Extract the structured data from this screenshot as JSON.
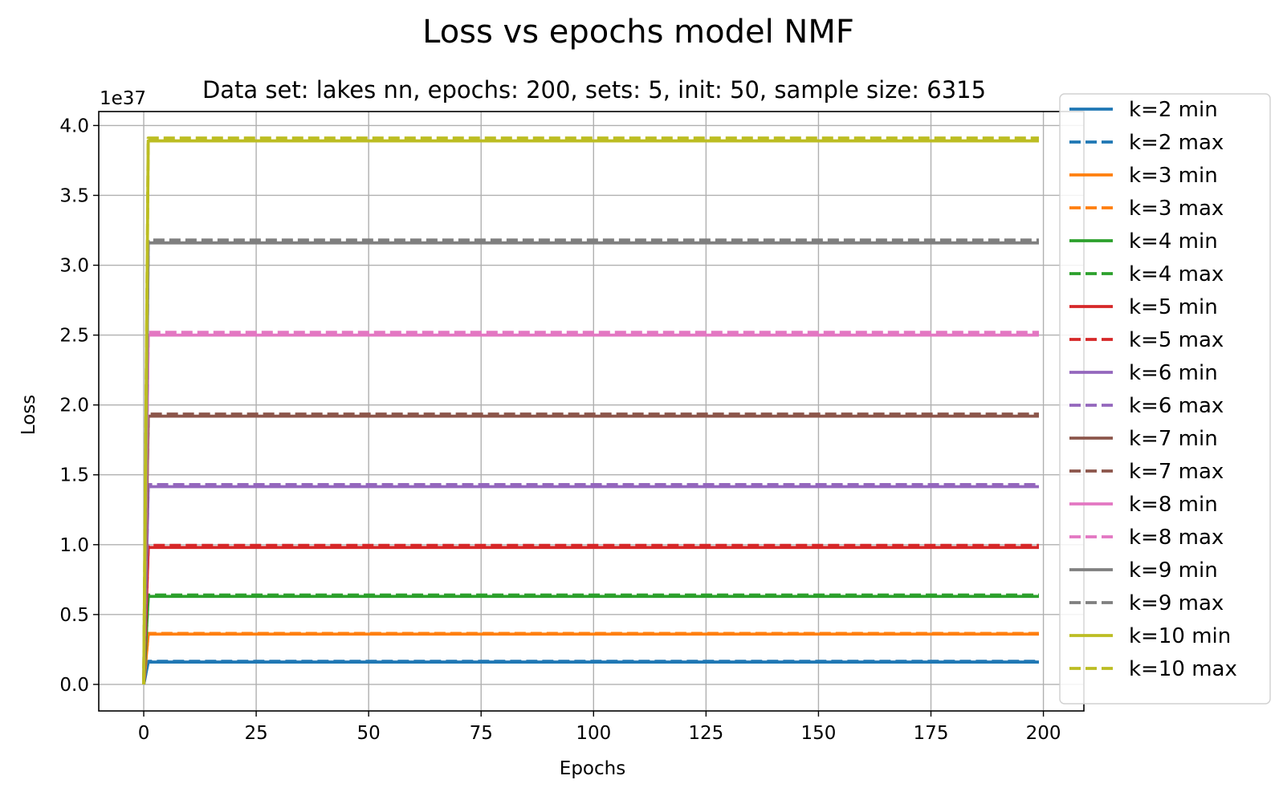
{
  "chart_data": {
    "type": "line",
    "title": "Loss vs epochs model NMF",
    "subtitle": "Data set:  lakes nn, epochs: 200, sets: 5, init: 50, sample size: 6315",
    "xlabel": "Epochs",
    "ylabel": "Loss",
    "y_offset_label": "1e37",
    "xlim": [
      -10,
      209
    ],
    "ylim": [
      -0.19,
      4.1
    ],
    "x_ticks": [
      0,
      25,
      50,
      75,
      100,
      125,
      150,
      175,
      200
    ],
    "x_tick_labels": [
      "0",
      "25",
      "50",
      "75",
      "100",
      "125",
      "150",
      "175",
      "200"
    ],
    "y_ticks": [
      0,
      0.5,
      1,
      1.5,
      2,
      2.5,
      3,
      3.5,
      4
    ],
    "y_tick_labels": [
      "0.0",
      "0.5",
      "1.0",
      "1.5",
      "2.0",
      "2.5",
      "3.0",
      "3.5",
      "4.0"
    ],
    "grid": true,
    "legend_position": "right, outside plot (top)",
    "x": [
      0,
      1,
      199
    ],
    "series": [
      {
        "name": "k=2 min",
        "color": "#1f77b4",
        "style": "solid",
        "values": [
          0,
          0.16,
          0.16
        ]
      },
      {
        "name": "k=2 max",
        "color": "#1f77b4",
        "style": "dashed",
        "values": [
          0,
          0.165,
          0.165
        ]
      },
      {
        "name": "k=3 min",
        "color": "#ff7f0e",
        "style": "solid",
        "values": [
          0,
          0.36,
          0.36
        ]
      },
      {
        "name": "k=3 max",
        "color": "#ff7f0e",
        "style": "dashed",
        "values": [
          0,
          0.365,
          0.365
        ]
      },
      {
        "name": "k=4 min",
        "color": "#2ca02c",
        "style": "solid",
        "values": [
          0,
          0.63,
          0.63
        ]
      },
      {
        "name": "k=4 max",
        "color": "#2ca02c",
        "style": "dashed",
        "values": [
          0,
          0.64,
          0.64
        ]
      },
      {
        "name": "k=5 min",
        "color": "#d62728",
        "style": "solid",
        "values": [
          0,
          0.98,
          0.98
        ]
      },
      {
        "name": "k=5 max",
        "color": "#d62728",
        "style": "dashed",
        "values": [
          0,
          0.995,
          0.995
        ]
      },
      {
        "name": "k=6 min",
        "color": "#9467bd",
        "style": "solid",
        "values": [
          0,
          1.415,
          1.415
        ]
      },
      {
        "name": "k=6 max",
        "color": "#9467bd",
        "style": "dashed",
        "values": [
          0,
          1.43,
          1.43
        ]
      },
      {
        "name": "k=7 min",
        "color": "#8c564b",
        "style": "solid",
        "values": [
          0,
          1.92,
          1.92
        ]
      },
      {
        "name": "k=7 max",
        "color": "#8c564b",
        "style": "dashed",
        "values": [
          0,
          1.935,
          1.935
        ]
      },
      {
        "name": "k=8 min",
        "color": "#e377c2",
        "style": "solid",
        "values": [
          0,
          2.5,
          2.5
        ]
      },
      {
        "name": "k=8 max",
        "color": "#e377c2",
        "style": "dashed",
        "values": [
          0,
          2.52,
          2.52
        ]
      },
      {
        "name": "k=9 min",
        "color": "#7f7f7f",
        "style": "solid",
        "values": [
          0,
          3.16,
          3.16
        ]
      },
      {
        "name": "k=9 max",
        "color": "#7f7f7f",
        "style": "dashed",
        "values": [
          0,
          3.18,
          3.18
        ]
      },
      {
        "name": "k=10 min",
        "color": "#bcbd22",
        "style": "solid",
        "values": [
          0,
          3.89,
          3.89
        ]
      },
      {
        "name": "k=10 max",
        "color": "#bcbd22",
        "style": "dashed",
        "values": [
          0,
          3.91,
          3.91
        ]
      }
    ]
  }
}
